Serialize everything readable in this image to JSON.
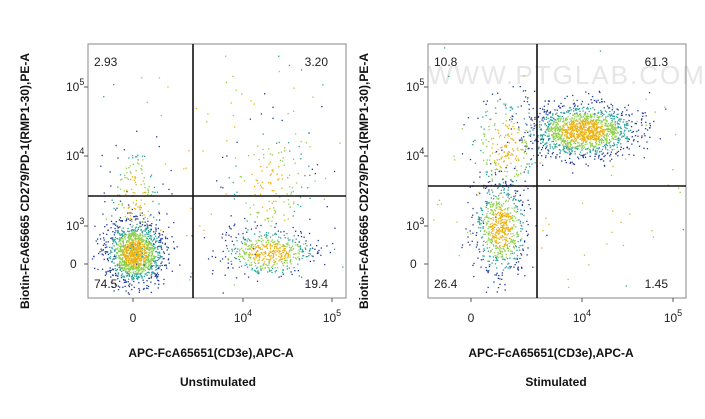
{
  "chart_data": [
    {
      "type": "scatter",
      "caption": "Unstimulated",
      "xlabel": "APC-FcA65651(CD3e),APC-A",
      "ylabel": "Biotin-FcA65665 CD279/PD-1(RMP1-30),PE-A",
      "x_ticks": [
        {
          "label": "0",
          "exp": ""
        },
        {
          "label": "10",
          "exp": "4"
        },
        {
          "label": "10",
          "exp": "5"
        }
      ],
      "y_ticks": [
        {
          "label": "0",
          "exp": ""
        },
        {
          "label": "10",
          "exp": "3"
        },
        {
          "label": "10",
          "exp": "4"
        },
        {
          "label": "10",
          "exp": "5"
        }
      ],
      "quadrants": {
        "upper_left": "2.93",
        "upper_right": "3.20",
        "lower_left": "74.5",
        "lower_right": "19.4"
      }
    },
    {
      "type": "scatter",
      "caption": "Stimulated",
      "watermark": "WWW.PTGLAB.COM",
      "xlabel": "APC-FcA65651(CD3e),APC-A",
      "ylabel": "Biotin-FcA65665 CD279/PD-1(RMP1-30),PE-A",
      "x_ticks": [
        {
          "label": "0",
          "exp": ""
        },
        {
          "label": "10",
          "exp": "4"
        },
        {
          "label": "10",
          "exp": "5"
        }
      ],
      "y_ticks": [
        {
          "label": "0",
          "exp": ""
        },
        {
          "label": "10",
          "exp": "3"
        },
        {
          "label": "10",
          "exp": "4"
        },
        {
          "label": "10",
          "exp": "5"
        }
      ],
      "quadrants": {
        "upper_left": "10.8",
        "upper_right": "61.3",
        "lower_left": "26.4",
        "lower_right": "1.45"
      }
    }
  ]
}
